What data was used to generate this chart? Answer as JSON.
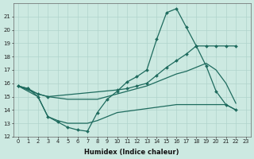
{
  "xlabel": "Humidex (Indice chaleur)",
  "ylabel": "",
  "bg_color": "#cce9e1",
  "line_color": "#1e6b5e",
  "grid_color": "#b0d4cc",
  "ylim": [
    12,
    22
  ],
  "xlim": [
    -0.5,
    23.5
  ],
  "yticks": [
    12,
    13,
    14,
    15,
    16,
    17,
    18,
    19,
    20,
    21
  ],
  "xticks": [
    0,
    1,
    2,
    3,
    4,
    5,
    6,
    7,
    8,
    9,
    10,
    11,
    12,
    13,
    14,
    15,
    16,
    17,
    18,
    19,
    20,
    21,
    22,
    23
  ],
  "lines": [
    {
      "x": [
        0,
        1,
        2,
        3,
        4,
        5,
        6,
        7,
        8,
        9,
        10,
        11,
        12,
        13,
        14,
        15,
        16,
        17,
        18,
        19,
        20,
        21,
        22
      ],
      "y": [
        15.8,
        15.6,
        15.0,
        13.5,
        13.1,
        12.7,
        12.5,
        12.4,
        13.8,
        14.8,
        15.4,
        16.1,
        16.5,
        17.0,
        19.3,
        21.3,
        21.6,
        20.2,
        18.8,
        17.3,
        15.4,
        14.4,
        14.0
      ],
      "marker": "D",
      "markersize": 2.0,
      "lw": 0.9
    },
    {
      "x": [
        0,
        1,
        2,
        3,
        10,
        11,
        12,
        13,
        14,
        15,
        16,
        17,
        18,
        19,
        20,
        21,
        22
      ],
      "y": [
        15.8,
        15.6,
        15.2,
        15.0,
        15.5,
        15.6,
        15.8,
        16.0,
        16.6,
        17.2,
        17.7,
        18.2,
        18.8,
        18.8,
        18.8,
        18.8,
        18.8
      ],
      "marker": "D",
      "markersize": 2.0,
      "lw": 0.9
    },
    {
      "x": [
        0,
        1,
        2,
        3,
        4,
        5,
        6,
        7,
        8,
        9,
        10,
        11,
        12,
        13,
        14,
        15,
        16,
        17,
        18,
        19,
        20,
        21,
        22
      ],
      "y": [
        15.8,
        15.5,
        15.2,
        15.0,
        14.9,
        14.8,
        14.8,
        14.8,
        14.8,
        15.0,
        15.2,
        15.4,
        15.6,
        15.8,
        16.1,
        16.4,
        16.7,
        16.9,
        17.2,
        17.5,
        17.0,
        16.0,
        14.5
      ],
      "marker": null,
      "markersize": 0,
      "lw": 0.9
    },
    {
      "x": [
        0,
        1,
        2,
        3,
        4,
        5,
        6,
        7,
        8,
        9,
        10,
        11,
        12,
        13,
        14,
        15,
        16,
        17,
        18,
        19,
        20,
        21,
        22
      ],
      "y": [
        15.8,
        15.4,
        15.0,
        13.5,
        13.2,
        13.0,
        13.0,
        13.0,
        13.2,
        13.5,
        13.8,
        13.9,
        14.0,
        14.1,
        14.2,
        14.3,
        14.4,
        14.4,
        14.4,
        14.4,
        14.4,
        14.4,
        14.0
      ],
      "marker": null,
      "markersize": 0,
      "lw": 0.9
    }
  ]
}
